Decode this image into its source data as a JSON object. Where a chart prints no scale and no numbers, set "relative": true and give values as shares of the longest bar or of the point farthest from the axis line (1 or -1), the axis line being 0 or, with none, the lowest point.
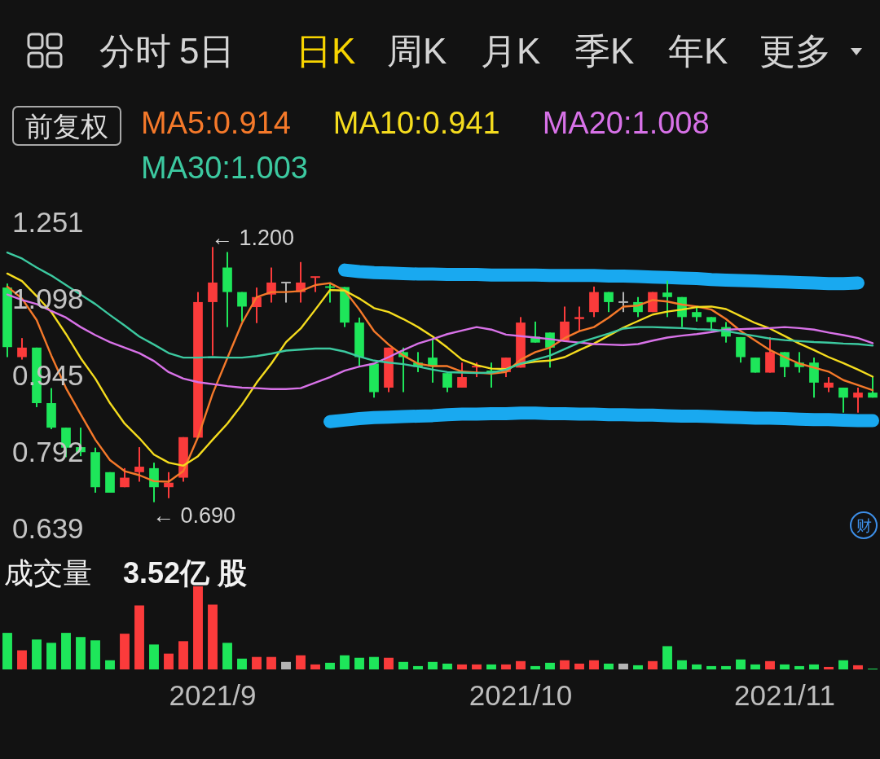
{
  "chart_data": [
    {
      "type": "other",
      "annotations": [
        "分时",
        "5日",
        "日K",
        "周K",
        "月K",
        "季K",
        "年K",
        "更多"
      ]
    },
    {
      "type": "candlestick",
      "categories": [
        null,
        null,
        null,
        null,
        null,
        null,
        null,
        null,
        null,
        null,
        null,
        null,
        null,
        null,
        null,
        null,
        null,
        null,
        null,
        null,
        null,
        null,
        null,
        null,
        null,
        null,
        null,
        null,
        null,
        null,
        null,
        null,
        null,
        null,
        null,
        null,
        null,
        null,
        null,
        null,
        null,
        null,
        null,
        null,
        null,
        null,
        null,
        null,
        null,
        null,
        null,
        null,
        null,
        null,
        null,
        null,
        null,
        null,
        null,
        null
      ],
      "ohlc": [
        [
          1.119,
          1.127,
          0.98,
          1.0
        ],
        [
          0.98,
          1.018,
          0.975,
          0.999
        ],
        [
          0.999,
          0.999,
          0.88,
          0.888
        ],
        [
          0.888,
          0.918,
          0.836,
          0.839
        ],
        [
          0.839,
          0.839,
          0.78,
          0.799
        ],
        [
          0.8,
          0.839,
          0.782,
          0.79
        ],
        [
          0.79,
          0.799,
          0.709,
          0.72
        ],
        [
          0.75,
          0.75,
          0.709,
          0.709
        ],
        [
          0.72,
          0.758,
          0.72,
          0.739
        ],
        [
          0.75,
          0.8,
          0.731,
          0.761
        ],
        [
          0.758,
          0.769,
          0.69,
          0.72
        ],
        [
          0.72,
          0.75,
          0.698,
          0.729
        ],
        [
          0.739,
          0.82,
          0.731,
          0.82
        ],
        [
          0.819,
          1.11,
          0.819,
          1.09
        ],
        [
          1.09,
          1.2,
          0.983,
          1.129
        ],
        [
          1.159,
          1.19,
          1.04,
          1.11
        ],
        [
          1.11,
          1.11,
          1.051,
          1.081
        ],
        [
          1.08,
          1.119,
          1.048,
          1.1
        ],
        [
          1.105,
          1.159,
          1.089,
          1.129
        ],
        [
          1.129,
          1.129,
          1.089,
          1.129
        ],
        [
          1.11,
          1.17,
          1.089,
          1.129
        ],
        [
          1.138,
          1.14,
          1.11,
          1.14
        ],
        [
          1.12,
          1.127,
          1.089,
          1.118
        ],
        [
          1.12,
          1.12,
          1.04,
          1.049
        ],
        [
          1.049,
          1.059,
          0.961,
          0.98
        ],
        [
          0.967,
          0.967,
          0.899,
          0.91
        ],
        [
          0.919,
          0.999,
          0.91,
          0.999
        ],
        [
          0.99,
          0.999,
          0.91,
          0.98
        ],
        [
          0.969,
          0.99,
          0.95,
          0.961
        ],
        [
          0.979,
          1.018,
          0.929,
          0.961
        ],
        [
          0.948,
          0.948,
          0.91,
          0.919
        ],
        [
          0.919,
          0.969,
          0.919,
          0.94
        ],
        [
          0.959,
          0.969,
          0.94,
          0.961
        ],
        [
          0.953,
          0.969,
          0.919,
          0.949
        ],
        [
          0.95,
          0.979,
          0.94,
          0.979
        ],
        [
          0.959,
          1.06,
          0.959,
          1.049
        ],
        [
          1.021,
          1.051,
          1.009,
          1.009
        ],
        [
          1.029,
          1.029,
          0.959,
          0.999
        ],
        [
          1.013,
          1.081,
          1.013,
          1.051
        ],
        [
          1.056,
          1.081,
          1.032,
          1.06
        ],
        [
          1.07,
          1.121,
          1.06,
          1.11
        ],
        [
          1.11,
          1.11,
          1.07,
          1.09
        ],
        [
          1.09,
          1.11,
          1.07,
          1.09
        ],
        [
          1.09,
          1.1,
          1.06,
          1.07
        ],
        [
          1.07,
          1.11,
          1.07,
          1.11
        ],
        [
          1.109,
          1.133,
          1.06,
          1.1
        ],
        [
          1.1,
          1.1,
          1.04,
          1.06
        ],
        [
          1.07,
          1.081,
          1.051,
          1.06
        ],
        [
          1.06,
          1.06,
          1.032,
          1.05
        ],
        [
          1.04,
          1.05,
          1.009,
          1.021
        ],
        [
          1.02,
          1.02,
          0.969,
          0.98
        ],
        [
          0.979,
          0.979,
          0.949,
          0.949
        ],
        [
          0.949,
          1.02,
          0.949,
          0.99
        ],
        [
          0.99,
          0.99,
          0.94,
          0.96
        ],
        [
          0.969,
          0.99,
          0.949,
          0.96
        ],
        [
          0.969,
          0.979,
          0.899,
          0.929
        ],
        [
          0.919,
          0.94,
          0.91,
          0.929
        ],
        [
          0.919,
          0.919,
          0.869,
          0.899
        ],
        [
          0.899,
          0.919,
          0.869,
          0.909
        ],
        [
          0.909,
          0.94,
          0.899,
          0.899
        ]
      ],
      "series": [
        {
          "type": "line",
          "name": "MA5:0.914",
          "color": "#f5792a",
          "values": [
            1.121,
            1.097,
            1.054,
            0.983,
            0.918,
            0.866,
            0.815,
            0.774,
            0.752,
            0.744,
            0.732,
            0.731,
            0.752,
            0.82,
            0.907,
            0.978,
            1.048,
            1.1,
            1.11,
            1.11,
            1.112,
            1.124,
            1.128,
            1.113,
            1.075,
            1.032,
            1.005,
            0.983,
            0.967,
            0.962,
            0.962,
            0.951,
            0.949,
            0.947,
            0.95,
            0.975,
            0.99,
            0.999,
            1.018,
            1.032,
            1.04,
            1.059,
            1.081,
            1.083,
            1.094,
            1.091,
            1.085,
            1.081,
            1.075,
            1.056,
            1.032,
            1.013,
            0.994,
            0.98,
            0.967,
            0.959,
            0.951,
            0.934,
            0.924,
            0.914
          ]
        },
        {
          "type": "line",
          "name": "MA10:0.941",
          "color": "#f5dc1e",
          "values": [
            1.147,
            1.132,
            1.102,
            1.07,
            1.026,
            0.978,
            0.937,
            0.888,
            0.847,
            0.818,
            0.785,
            0.769,
            0.763,
            0.782,
            0.815,
            0.847,
            0.885,
            0.929,
            0.967,
            1.01,
            1.037,
            1.075,
            1.114,
            1.113,
            1.097,
            1.078,
            1.07,
            1.056,
            1.04,
            1.021,
            0.999,
            0.975,
            0.964,
            0.957,
            0.956,
            0.967,
            0.971,
            0.973,
            0.98,
            0.994,
            1.007,
            1.023,
            1.039,
            1.052,
            1.065,
            1.071,
            1.075,
            1.08,
            1.081,
            1.076,
            1.062,
            1.048,
            1.037,
            1.022,
            1.007,
            0.994,
            0.98,
            0.968,
            0.955,
            0.941
          ]
        },
        {
          "type": "line",
          "name": "MA20:1.008",
          "color": "#d872e8",
          "values": [
            1.105,
            1.094,
            1.086,
            1.072,
            1.059,
            1.04,
            1.024,
            1.01,
            0.999,
            0.988,
            0.972,
            0.95,
            0.937,
            0.93,
            0.926,
            0.922,
            0.919,
            0.918,
            0.916,
            0.916,
            0.918,
            0.929,
            0.94,
            0.953,
            0.961,
            0.967,
            0.98,
            0.994,
            1.007,
            1.016,
            1.026,
            1.033,
            1.04,
            1.035,
            1.025,
            1.022,
            1.019,
            1.016,
            1.012,
            1.009,
            1.006,
            1.005,
            1.004,
            1.006,
            1.013,
            1.019,
            1.023,
            1.026,
            1.03,
            1.035,
            1.036,
            1.037,
            1.038,
            1.04,
            1.038,
            1.035,
            1.029,
            1.024,
            1.018,
            1.008
          ]
        },
        {
          "type": "line",
          "name": "MA30:1.003",
          "color": "#3cc9a0",
          "values": [
            1.189,
            1.177,
            1.159,
            1.143,
            1.124,
            1.105,
            1.086,
            1.064,
            1.043,
            1.021,
            1.005,
            0.988,
            0.979,
            0.979,
            0.98,
            0.979,
            0.979,
            0.982,
            0.987,
            0.993,
            0.995,
            0.997,
            0.997,
            0.991,
            0.981,
            0.973,
            0.969,
            0.966,
            0.961,
            0.955,
            0.95,
            0.949,
            0.948,
            0.949,
            0.955,
            0.967,
            0.975,
            0.983,
            0.996,
            1.009,
            1.018,
            1.027,
            1.037,
            1.04,
            1.04,
            1.039,
            1.038,
            1.036,
            1.035,
            1.032,
            1.027,
            1.022,
            1.017,
            1.014,
            1.012,
            1.01,
            1.009,
            1.007,
            1.006,
            1.003
          ]
        },
        {
          "type": "line",
          "color": "#19a9f0",
          "values": [
            null,
            null,
            null,
            null,
            null,
            null,
            null,
            null,
            null,
            null,
            null,
            null,
            null,
            null,
            null,
            null,
            null,
            null,
            null,
            null,
            null,
            null,
            null,
            1.154,
            1.151,
            1.149,
            1.148,
            1.147,
            1.146,
            1.146,
            1.145,
            1.145,
            1.145,
            1.144,
            1.144,
            1.144,
            1.144,
            1.143,
            1.143,
            1.143,
            1.143,
            1.142,
            1.142,
            1.141,
            1.14,
            1.139,
            1.138,
            1.137,
            1.135,
            1.134,
            1.133,
            1.132,
            1.131,
            1.13,
            1.129,
            1.128,
            1.127,
            1.127,
            1.128,
            null
          ]
        },
        {
          "type": "line",
          "color": "#19a9f0",
          "values": [
            null,
            null,
            null,
            null,
            null,
            null,
            null,
            null,
            null,
            null,
            null,
            null,
            null,
            null,
            null,
            null,
            null,
            null,
            null,
            null,
            null,
            null,
            0.851,
            0.854,
            0.857,
            0.859,
            0.86,
            0.861,
            0.862,
            0.863,
            0.865,
            0.866,
            0.866,
            0.867,
            0.867,
            0.868,
            0.868,
            0.867,
            0.867,
            0.866,
            0.866,
            0.865,
            0.865,
            0.864,
            0.864,
            0.863,
            0.862,
            0.862,
            0.861,
            0.86,
            0.859,
            0.858,
            0.858,
            0.857,
            0.856,
            0.855,
            0.855,
            0.854,
            0.853,
            0.853
          ]
        }
      ],
      "ylim": [
        0.639,
        1.251
      ],
      "yticks": [
        1.251,
        1.098,
        0.945,
        0.792,
        0.639
      ],
      "tick_labels": "y",
      "legend": "top",
      "legend_title": "前复权",
      "annotations": [
        "← 1.200",
        "← 0.690",
        "财"
      ]
    },
    {
      "type": "bar",
      "title": "成交量",
      "subtitle": "3.52亿 股",
      "relative": true,
      "tick_labels": "x",
      "categories": [
        null,
        null,
        null,
        null,
        null,
        null,
        null,
        null,
        null,
        null,
        null,
        null,
        null,
        null,
        "2021/9",
        null,
        null,
        null,
        null,
        null,
        null,
        null,
        null,
        null,
        null,
        null,
        null,
        null,
        null,
        null,
        null,
        null,
        null,
        null,
        null,
        "2021/10",
        null,
        null,
        null,
        null,
        null,
        null,
        null,
        null,
        null,
        null,
        null,
        null,
        null,
        null,
        null,
        null,
        null,
        "2021/11",
        null,
        null,
        null,
        null,
        null,
        null
      ],
      "values": [
        0.44,
        0.23,
        0.36,
        0.32,
        0.44,
        0.39,
        0.35,
        0.11,
        0.43,
        0.77,
        0.3,
        0.19,
        0.34,
        1,
        0.78,
        0.32,
        0.13,
        0.15,
        0.15,
        0.09,
        0.17,
        0.06,
        0.08,
        0.17,
        0.14,
        0.15,
        0.14,
        0.09,
        0.04,
        0.09,
        0.07,
        0.06,
        0.06,
        0.06,
        0.06,
        0.1,
        0.04,
        0.08,
        0.11,
        0.07,
        0.11,
        0.07,
        0.07,
        0.05,
        0.1,
        0.28,
        0.11,
        0.06,
        0.04,
        0.04,
        0.12,
        0.06,
        0.1,
        0.06,
        0.04,
        0.06,
        0.03,
        0.11,
        0.05,
        0.01
      ],
      "colors": [
        "#1ee65a",
        "#fb3b3b",
        "#1ee65a",
        "#1ee65a",
        "#1ee65a",
        "#1ee65a",
        "#1ee65a",
        "#1ee65a",
        "#fb3b3b",
        "#fb3b3b",
        "#1ee65a",
        "#fb3b3b",
        "#fb3b3b",
        "#fb3b3b",
        "#fb3b3b",
        "#1ee65a",
        "#1ee65a",
        "#fb3b3b",
        "#fb3b3b",
        "#b4b4b4",
        "#fb3b3b",
        "#fb3b3b",
        "#1ee65a",
        "#1ee65a",
        "#1ee65a",
        "#1ee65a",
        "#fb3b3b",
        "#1ee65a",
        "#1ee65a",
        "#1ee65a",
        "#1ee65a",
        "#fb3b3b",
        "#fb3b3b",
        "#1ee65a",
        "#fb3b3b",
        "#fb3b3b",
        "#1ee65a",
        "#1ee65a",
        "#fb3b3b",
        "#fb3b3b",
        "#fb3b3b",
        "#1ee65a",
        "#b4b4b4",
        "#1ee65a",
        "#fb3b3b",
        "#1ee65a",
        "#1ee65a",
        "#1ee65a",
        "#1ee65a",
        "#1ee65a",
        "#1ee65a",
        "#1ee65a",
        "#fb3b3b",
        "#1ee65a",
        "#1ee65a",
        "#1ee65a",
        "#fb3b3b",
        "#1ee65a",
        "#fb3b3b",
        "#1ee65a"
      ]
    }
  ]
}
